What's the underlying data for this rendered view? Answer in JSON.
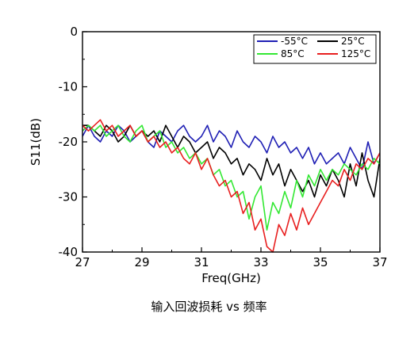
{
  "caption": "输入回波损耗 vs 频率",
  "chart_data": {
    "type": "line",
    "title": "",
    "xlabel": "Freq(GHz)",
    "ylabel": "S11(dB)",
    "xlim": [
      27,
      37
    ],
    "ylim": [
      -40,
      0
    ],
    "xticks": [
      27,
      29,
      31,
      33,
      35,
      37
    ],
    "yticks": [
      0,
      -10,
      -20,
      -30,
      -40
    ],
    "grid": false,
    "legend_position": "top-right",
    "series": [
      {
        "name": "-55°C",
        "color": "#1f1fb4",
        "x": [
          27.0,
          27.2,
          27.4,
          27.6,
          27.8,
          28.0,
          28.2,
          28.4,
          28.6,
          28.8,
          29.0,
          29.2,
          29.4,
          29.6,
          29.8,
          30.0,
          30.2,
          30.4,
          30.6,
          30.8,
          31.0,
          31.2,
          31.4,
          31.6,
          31.8,
          32.0,
          32.2,
          32.4,
          32.6,
          32.8,
          33.0,
          33.2,
          33.4,
          33.6,
          33.8,
          34.0,
          34.2,
          34.4,
          34.6,
          34.8,
          35.0,
          35.2,
          35.4,
          35.6,
          35.8,
          36.0,
          36.2,
          36.4,
          36.6,
          36.8,
          37.0
        ],
        "values": [
          -19,
          -17,
          -19,
          -20,
          -18,
          -19,
          -17,
          -18,
          -20,
          -19,
          -18,
          -20,
          -21,
          -18,
          -19,
          -20,
          -18,
          -17,
          -19,
          -20,
          -19,
          -17,
          -20,
          -18,
          -19,
          -21,
          -18,
          -20,
          -21,
          -19,
          -20,
          -22,
          -19,
          -21,
          -20,
          -22,
          -21,
          -23,
          -21,
          -24,
          -22,
          -24,
          -23,
          -22,
          -24,
          -21,
          -23,
          -25,
          -20,
          -24,
          -22
        ]
      },
      {
        "name": "25°C",
        "color": "#000000",
        "x": [
          27.0,
          27.2,
          27.4,
          27.6,
          27.8,
          28.0,
          28.2,
          28.4,
          28.6,
          28.8,
          29.0,
          29.2,
          29.4,
          29.6,
          29.8,
          30.0,
          30.2,
          30.4,
          30.6,
          30.8,
          31.0,
          31.2,
          31.4,
          31.6,
          31.8,
          32.0,
          32.2,
          32.4,
          32.6,
          32.8,
          33.0,
          33.2,
          33.4,
          33.6,
          33.8,
          34.0,
          34.2,
          34.4,
          34.6,
          34.8,
          35.0,
          35.2,
          35.4,
          35.6,
          35.8,
          36.0,
          36.2,
          36.4,
          36.6,
          36.8,
          37.0
        ],
        "values": [
          -17,
          -17,
          -18,
          -19,
          -17,
          -18,
          -20,
          -19,
          -17,
          -19,
          -18,
          -19,
          -18,
          -20,
          -17,
          -19,
          -21,
          -19,
          -20,
          -22,
          -21,
          -20,
          -23,
          -21,
          -22,
          -24,
          -23,
          -26,
          -24,
          -25,
          -27,
          -23,
          -26,
          -24,
          -28,
          -25,
          -27,
          -29,
          -27,
          -30,
          -26,
          -28,
          -25,
          -27,
          -30,
          -24,
          -28,
          -22,
          -27,
          -30,
          -23
        ]
      },
      {
        "name": "85°C",
        "color": "#33e833",
        "x": [
          27.0,
          27.2,
          27.4,
          27.6,
          27.8,
          28.0,
          28.2,
          28.4,
          28.6,
          28.8,
          29.0,
          29.2,
          29.4,
          29.6,
          29.8,
          30.0,
          30.2,
          30.4,
          30.6,
          30.8,
          31.0,
          31.2,
          31.4,
          31.6,
          31.8,
          32.0,
          32.2,
          32.4,
          32.6,
          32.8,
          33.0,
          33.2,
          33.4,
          33.6,
          33.8,
          34.0,
          34.2,
          34.4,
          34.6,
          34.8,
          35.0,
          35.2,
          35.4,
          35.6,
          35.8,
          36.0,
          36.2,
          36.4,
          36.6,
          36.8,
          37.0
        ],
        "values": [
          -18,
          -17,
          -18,
          -17,
          -19,
          -18,
          -17,
          -19,
          -20,
          -18,
          -17,
          -20,
          -19,
          -18,
          -21,
          -20,
          -22,
          -21,
          -23,
          -22,
          -24,
          -23,
          -26,
          -25,
          -28,
          -27,
          -30,
          -29,
          -34,
          -30,
          -28,
          -36,
          -31,
          -33,
          -29,
          -32,
          -27,
          -30,
          -26,
          -28,
          -25,
          -27,
          -25,
          -26,
          -24,
          -25,
          -26,
          -24,
          -25,
          -23,
          -24
        ]
      },
      {
        "name": "125°C",
        "color": "#e81f1f",
        "x": [
          27.0,
          27.2,
          27.4,
          27.6,
          27.8,
          28.0,
          28.2,
          28.4,
          28.6,
          28.8,
          29.0,
          29.2,
          29.4,
          29.6,
          29.8,
          30.0,
          30.2,
          30.4,
          30.6,
          30.8,
          31.0,
          31.2,
          31.4,
          31.6,
          31.8,
          32.0,
          32.2,
          32.4,
          32.6,
          32.8,
          33.0,
          33.2,
          33.4,
          33.6,
          33.8,
          34.0,
          34.2,
          34.4,
          34.6,
          34.8,
          35.0,
          35.2,
          35.4,
          35.6,
          35.8,
          36.0,
          36.2,
          36.4,
          36.6,
          36.8,
          37.0
        ],
        "values": [
          -17,
          -18,
          -17,
          -16,
          -18,
          -17,
          -19,
          -18,
          -17,
          -19,
          -18,
          -20,
          -19,
          -21,
          -20,
          -22,
          -21,
          -23,
          -24,
          -22,
          -25,
          -23,
          -26,
          -28,
          -27,
          -30,
          -29,
          -33,
          -31,
          -36,
          -34,
          -39,
          -40,
          -35,
          -37,
          -33,
          -36,
          -32,
          -35,
          -33,
          -31,
          -29,
          -27,
          -28,
          -25,
          -27,
          -24,
          -25,
          -23,
          -24,
          -22
        ]
      }
    ]
  }
}
